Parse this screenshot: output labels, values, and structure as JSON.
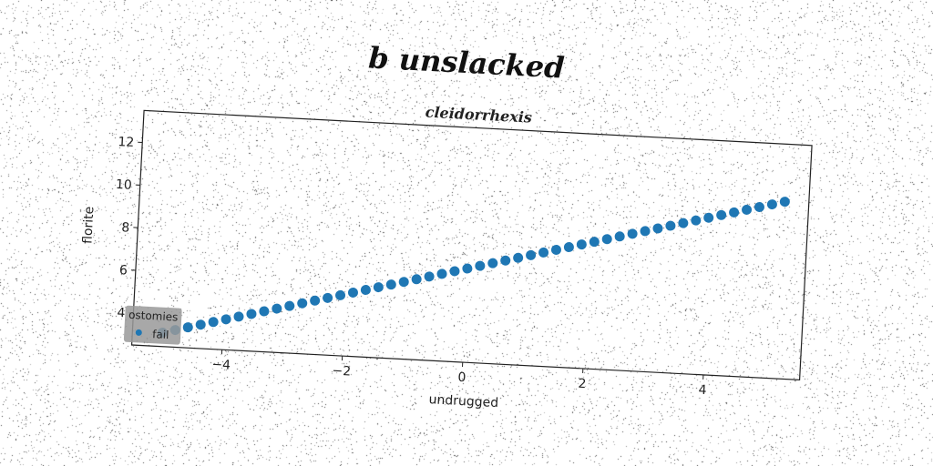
{
  "figure": {
    "title": "b unslacked"
  },
  "chart_data": {
    "type": "scatter",
    "title": "cleidorrhexis",
    "xlabel": "undrugged",
    "ylabel": "florite",
    "xlim": [
      -5.5,
      5.6
    ],
    "ylim": [
      2.5,
      13.5
    ],
    "xticks": [
      -4,
      -2,
      0,
      2,
      4
    ],
    "yticks": [
      4,
      6,
      8,
      10,
      12
    ],
    "grid": false,
    "legend": {
      "title": "ostomies",
      "placement": "bottom-left"
    },
    "series": [
      {
        "name": "fail",
        "color": "#1f77b4",
        "x_start": -5.0,
        "x_end": 5.2,
        "count": 50,
        "slope": 0.75,
        "intercept": 6.9
      }
    ]
  }
}
